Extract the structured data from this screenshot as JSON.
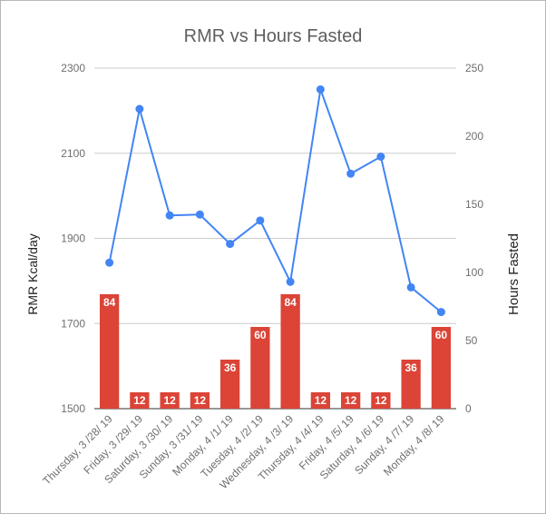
{
  "chart_data": {
    "type": "bar",
    "title": "RMR vs Hours Fasted",
    "categories": [
      "Thursday, 3 /28/ 19",
      "Friday, 3 /29/ 19",
      "Saturday, 3 /30/ 19",
      "Sunday, 3 /31/ 19",
      "Monday, 4 /1/ 19",
      "Tuesday, 4 /2/ 19",
      "Wednesday, 4 /3/ 19",
      "Thursday, 4 /4/ 19",
      "Friday, 4 /5/ 19",
      "Saturday, 4 /6/ 19",
      "Sunday, 4 /7/ 19",
      "Monday, 4 /8/ 19"
    ],
    "ylabel_left": "RMR Kcal/day",
    "ylabel_right": "Hours Fasted",
    "ylim_left": [
      1500,
      2300
    ],
    "yticks_left": [
      1500,
      1700,
      1900,
      2100,
      2300
    ],
    "ylim_right": [
      0,
      250
    ],
    "yticks_right": [
      0,
      50,
      100,
      150,
      200,
      250
    ],
    "grid": true,
    "legend": "none",
    "series": [
      {
        "type": "line",
        "axis": "left",
        "color": "#4285f4",
        "values": [
          1843,
          2204,
          1954,
          1956,
          1887,
          1942,
          1798,
          2250,
          2052,
          2092,
          1785,
          1727
        ]
      },
      {
        "type": "bar",
        "axis": "right",
        "color": "#db4437",
        "values": [
          84,
          12,
          12,
          12,
          36,
          60,
          84,
          12,
          12,
          12,
          36,
          60
        ],
        "data_labels": [
          "84",
          "12",
          "12",
          "12",
          "36",
          "60",
          "84",
          "12",
          "12",
          "12",
          "36",
          "60"
        ]
      }
    ]
  }
}
